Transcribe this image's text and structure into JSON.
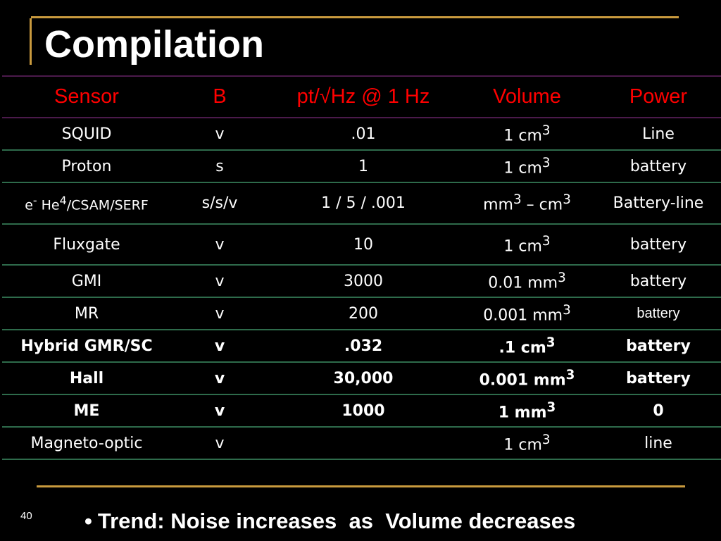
{
  "slide": {
    "title": "Compilation",
    "page_number": "40",
    "trend_text": "Trend: Noise increases  as  Volume decreases",
    "colors": {
      "background": "#000000",
      "header_text": "#ff0000",
      "accent_line": "#c99a3e",
      "header_rule": "#4b1a4b",
      "row_rule": "#2e6b4b"
    }
  },
  "table": {
    "headers": [
      "Sensor",
      "B",
      "pt/√Hz @ 1 Hz",
      "Volume",
      "Power"
    ],
    "rows": [
      {
        "sensor": "SQUID",
        "b": "v",
        "noise": ".01",
        "volume": "1 cm",
        "volume_sup": "3",
        "power": "Line",
        "bold": false
      },
      {
        "sensor": "Proton",
        "b": "s",
        "noise": "1",
        "volume": "1 cm",
        "volume_sup": "3",
        "power": "battery",
        "bold": false
      },
      {
        "sensor_prefix": "e",
        "sensor_prefix_sup": "-",
        "sensor": " He",
        "sensor_sup": "4",
        "sensor_suffix": "/CSAM/SERF",
        "b": "s/s/v",
        "noise": "1 / 5 / .001",
        "volume": "mm",
        "volume_sup": "3",
        "volume_suffix": " – cm",
        "volume_suffix_sup": "3",
        "power": "Battery-line",
        "bold": false
      },
      {
        "sensor": "Fluxgate",
        "b": "v",
        "noise": "10",
        "volume": "1 cm",
        "volume_sup": "3",
        "power": "battery",
        "bold": false
      },
      {
        "sensor": "GMI",
        "b": "v",
        "noise": "3000",
        "volume": "0.01 mm",
        "volume_sup": "3",
        "power": "battery",
        "bold": false
      },
      {
        "sensor": "MR",
        "b": "v",
        "noise": "200",
        "volume": "0.001 mm",
        "volume_sup": "3",
        "power": "battery",
        "bold": false
      },
      {
        "sensor": "Hybrid GMR/SC",
        "b": "v",
        "noise": ".032",
        "volume": ".1 cm",
        "volume_sup": "3",
        "power": "battery",
        "bold": true
      },
      {
        "sensor": "Hall",
        "b": "v",
        "noise": "30,000",
        "volume": "0.001 mm",
        "volume_sup": "3",
        "power": "battery",
        "bold": true
      },
      {
        "sensor": "ME",
        "b": "v",
        "noise": "1000",
        "volume": "1 mm",
        "volume_sup": "3",
        "power": "0",
        "bold": true
      },
      {
        "sensor": "Magneto-optic",
        "b": "v",
        "noise": "",
        "volume": "1 cm",
        "volume_sup": "3",
        "power": "line",
        "bold": false
      }
    ]
  }
}
